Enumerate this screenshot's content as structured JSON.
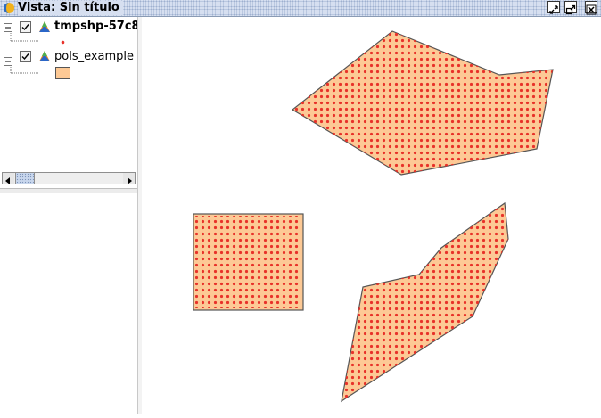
{
  "window": {
    "title": "Vista: Sin título",
    "buttons": [
      "minimize-restore-icon",
      "maximize-icon",
      "close-icon"
    ]
  },
  "toc": {
    "layers": [
      {
        "name": "tmpshp-57c8",
        "bold": true,
        "checked": true,
        "legend": "red-point-symbol"
      },
      {
        "name": "pols_example",
        "bold": false,
        "checked": true,
        "legend": "orange-fill-symbol"
      }
    ]
  },
  "colors": {
    "polygon_fill": "#fdc995",
    "polygon_stroke": "#555555",
    "point_color": "#e8322a",
    "title_bar": "#d6dff0"
  },
  "map": {
    "features": [
      "polygon-top",
      "rectangle-left",
      "polygon-bottom"
    ]
  }
}
